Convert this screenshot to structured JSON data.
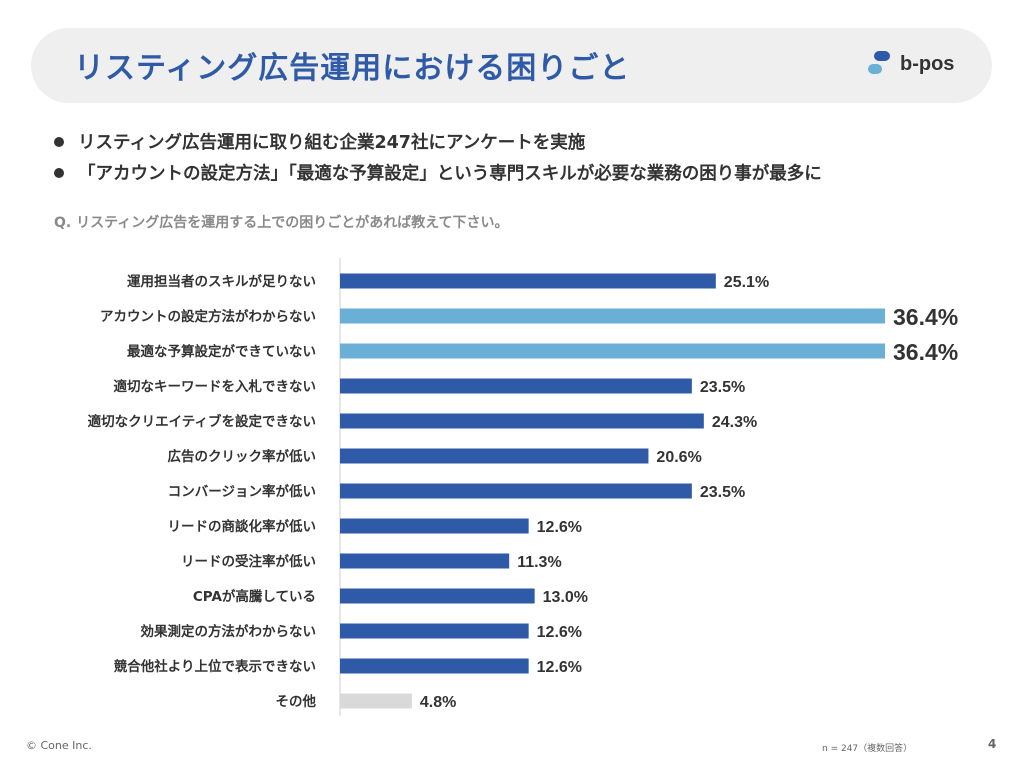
{
  "header": {
    "title": "リスティング広告運用における困りごと",
    "logo_text": "b-pos"
  },
  "bullets": [
    "リスティング広告運用に取り組む企業247社にアンケートを実施",
    "「アカウントの設定方法」「最適な予算設定」という専門スキルが必要な業務の困り事が最多に"
  ],
  "question": "Q. リスティング広告を運用する上での困りごとがあれば教えて下さい。",
  "colors": {
    "primary": "#2f5aa8",
    "highlight": "#6ab0d6",
    "other": "#d9d9d9",
    "title": "#2f5aa8"
  },
  "chart_data": {
    "type": "bar",
    "orientation": "horizontal",
    "categories": [
      "運用担当者のスキルが足りない",
      "アカウントの設定方法がわからない",
      "最適な予算設定ができていない",
      "適切なキーワードを入札できない",
      "適切なクリエイティブを設定できない",
      "広告のクリック率が低い",
      "コンバージョン率が低い",
      "リードの商談化率が低い",
      "リードの受注率が低い",
      "CPAが高騰している",
      "効果測定の方法がわからない",
      "競合他社より上位で表示できない",
      "その他"
    ],
    "values": [
      25.1,
      36.4,
      36.4,
      23.5,
      24.3,
      20.6,
      23.5,
      12.6,
      11.3,
      13.0,
      12.6,
      12.6,
      4.8
    ],
    "labels": [
      "25.1%",
      "36.4%",
      "36.4%",
      "23.5%",
      "24.3%",
      "20.6%",
      "23.5%",
      "12.6%",
      "11.3%",
      "13.0%",
      "12.6%",
      "12.6%",
      "4.8%"
    ],
    "highlight_indices": [
      1,
      2
    ],
    "other_indices": [
      12
    ],
    "unit": "%",
    "xlim": [
      0,
      36.4
    ]
  },
  "footer": {
    "copyright": "© Cone Inc.",
    "note": "n = 247（複数回答）",
    "page": "4"
  }
}
